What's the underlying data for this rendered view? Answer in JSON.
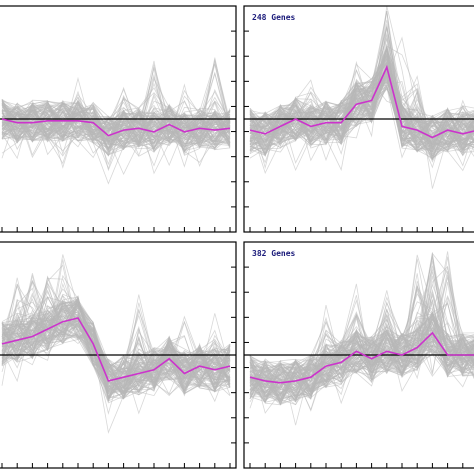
{
  "chart_data": [
    {
      "type": "line",
      "title": "",
      "points": 16,
      "ylim": [
        -3,
        3
      ],
      "band": {
        "offset": 0.0,
        "spread": 0.55,
        "spikes": [
          [
            2,
            0.8
          ],
          [
            5,
            0.9
          ],
          [
            8,
            1.0
          ],
          [
            10,
            1.6
          ],
          [
            12,
            0.9
          ],
          [
            14,
            1.8
          ]
        ]
      },
      "mean": [
        0.0,
        -0.1,
        -0.1,
        -0.05,
        -0.05,
        -0.05,
        -0.1,
        -0.45,
        -0.3,
        -0.25,
        -0.35,
        -0.15,
        -0.35,
        -0.25,
        -0.3,
        -0.25
      ],
      "gene_count": 120
    },
    {
      "type": "line",
      "title": "248 Genes",
      "points": 16,
      "ylim": [
        -3,
        3
      ],
      "band": {
        "offset": 0.0,
        "spread": 0.6,
        "spikes": [
          [
            4,
            0.9
          ],
          [
            7,
            1.1
          ],
          [
            9,
            1.6
          ],
          [
            10,
            2.6
          ],
          [
            11,
            1.0
          ],
          [
            14,
            0.7
          ]
        ]
      },
      "mean": [
        -0.3,
        -0.4,
        -0.2,
        0.0,
        -0.2,
        -0.1,
        -0.1,
        0.4,
        0.5,
        1.4,
        -0.2,
        -0.3,
        -0.5,
        -0.3,
        -0.4,
        -0.3
      ],
      "gene_count": 120
    },
    {
      "type": "line",
      "title": "",
      "points": 16,
      "ylim": [
        -3,
        3
      ],
      "band": {
        "offset": 0.0,
        "spread": 0.6,
        "spikes": [
          [
            1,
            1.2
          ],
          [
            2,
            1.4
          ],
          [
            3,
            1.5
          ],
          [
            4,
            1.8
          ],
          [
            9,
            2.1
          ],
          [
            12,
            1.1
          ],
          [
            14,
            1.3
          ]
        ]
      },
      "mean": [
        0.3,
        0.4,
        0.5,
        0.7,
        0.9,
        1.0,
        0.3,
        -0.7,
        -0.6,
        -0.5,
        -0.4,
        -0.1,
        -0.5,
        -0.3,
        -0.4,
        -0.3
      ],
      "gene_count": 120
    },
    {
      "type": "line",
      "title": "382 Genes",
      "points": 16,
      "ylim": [
        -3,
        3
      ],
      "band": {
        "offset": 0.0,
        "spread": 0.6,
        "spikes": [
          [
            5,
            1.2
          ],
          [
            7,
            1.6
          ],
          [
            9,
            1.5
          ],
          [
            11,
            2.4
          ],
          [
            12,
            1.8
          ],
          [
            13,
            2.4
          ]
        ]
      },
      "mean": [
        -0.6,
        -0.7,
        -0.75,
        -0.7,
        -0.6,
        -0.3,
        -0.2,
        0.1,
        -0.1,
        0.1,
        0.0,
        0.2,
        0.6,
        0.0,
        0.0,
        0.0
      ],
      "gene_count": 120
    }
  ]
}
